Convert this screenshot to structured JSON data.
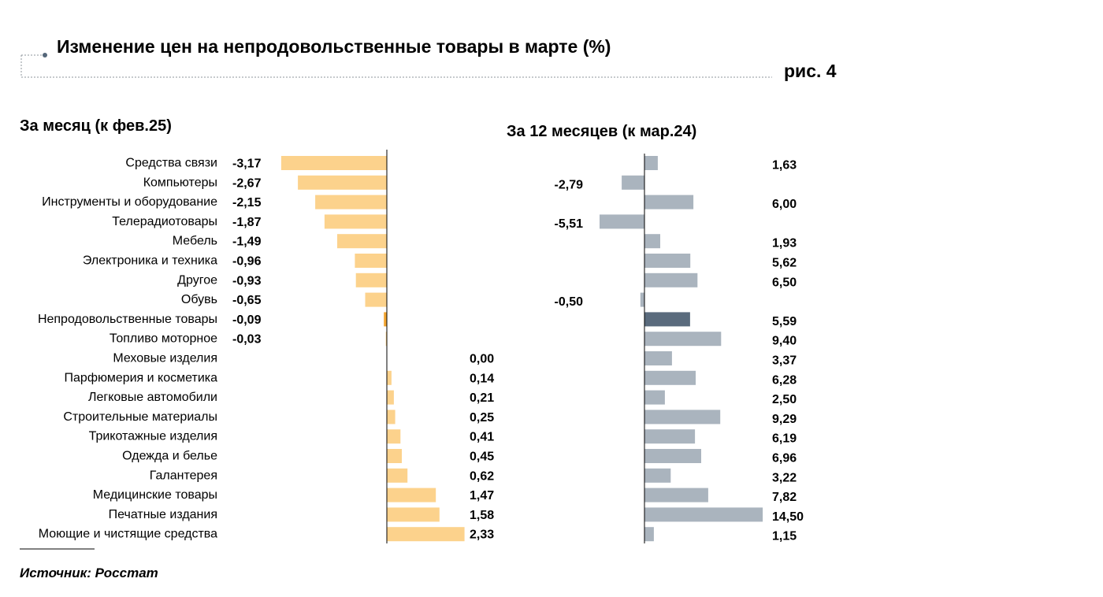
{
  "figure_label": "рис. 4",
  "source": "Источник: Росстат",
  "chart_data": {
    "type": "bar",
    "orientation": "horizontal",
    "title": "Изменение цен на непродовольственные товары в марте (%)",
    "categories": [
      "Средства связи",
      "Компьютеры",
      "Инструменты и оборудование",
      "Телерадиотовары",
      "Мебель",
      "Электроника и техника",
      "Другое",
      "Обувь",
      "Непродовольственные товары",
      "Топливо моторное",
      "Меховые изделия",
      "Парфюмерия и косметика",
      "Легковые автомобили",
      "Строительные материалы",
      "Трикотажные изделия",
      "Одежда и белье",
      "Галантерея",
      "Медицинские товары",
      "Печатные издания",
      "Моющие и чистящие средства"
    ],
    "series": [
      {
        "name": "За месяц (к фев.25)",
        "values": [
          -3.17,
          -2.67,
          -2.15,
          -1.87,
          -1.49,
          -0.96,
          -0.93,
          -0.65,
          -0.09,
          -0.03,
          0.0,
          0.14,
          0.21,
          0.25,
          0.41,
          0.45,
          0.62,
          1.47,
          1.58,
          2.33
        ],
        "value_labels": [
          "-3,17",
          "-2,67",
          "-2,15",
          "-1,87",
          "-1,49",
          "-0,96",
          "-0,93",
          "-0,65",
          "-0,09",
          "-0,03",
          "0,00",
          "0,14",
          "0,21",
          "0,25",
          "0,41",
          "0,45",
          "0,62",
          "1,47",
          "1,58",
          "2,33"
        ],
        "color": "#FCD28C",
        "highlight_color": "#F2A531"
      },
      {
        "name": "За 12 месяцев (к мар.24)",
        "values": [
          1.63,
          -2.79,
          6.0,
          -5.51,
          1.93,
          5.62,
          6.5,
          -0.5,
          5.59,
          9.4,
          3.37,
          6.28,
          2.5,
          9.29,
          6.19,
          6.96,
          3.22,
          7.82,
          14.5,
          1.15
        ],
        "value_labels": [
          "1,63",
          "-2,79",
          "6,00",
          "-5,51",
          "1,93",
          "5,62",
          "6,50",
          "-0,50",
          "5,59",
          "9,40",
          "3,37",
          "6,28",
          "2,50",
          "9,29",
          "6,19",
          "6,96",
          "3,22",
          "7,82",
          "14,50",
          "1,15"
        ],
        "color": "#AAB4BE",
        "highlight_color": "#5A6B7D"
      }
    ],
    "highlight_index": 8,
    "grid": false
  }
}
